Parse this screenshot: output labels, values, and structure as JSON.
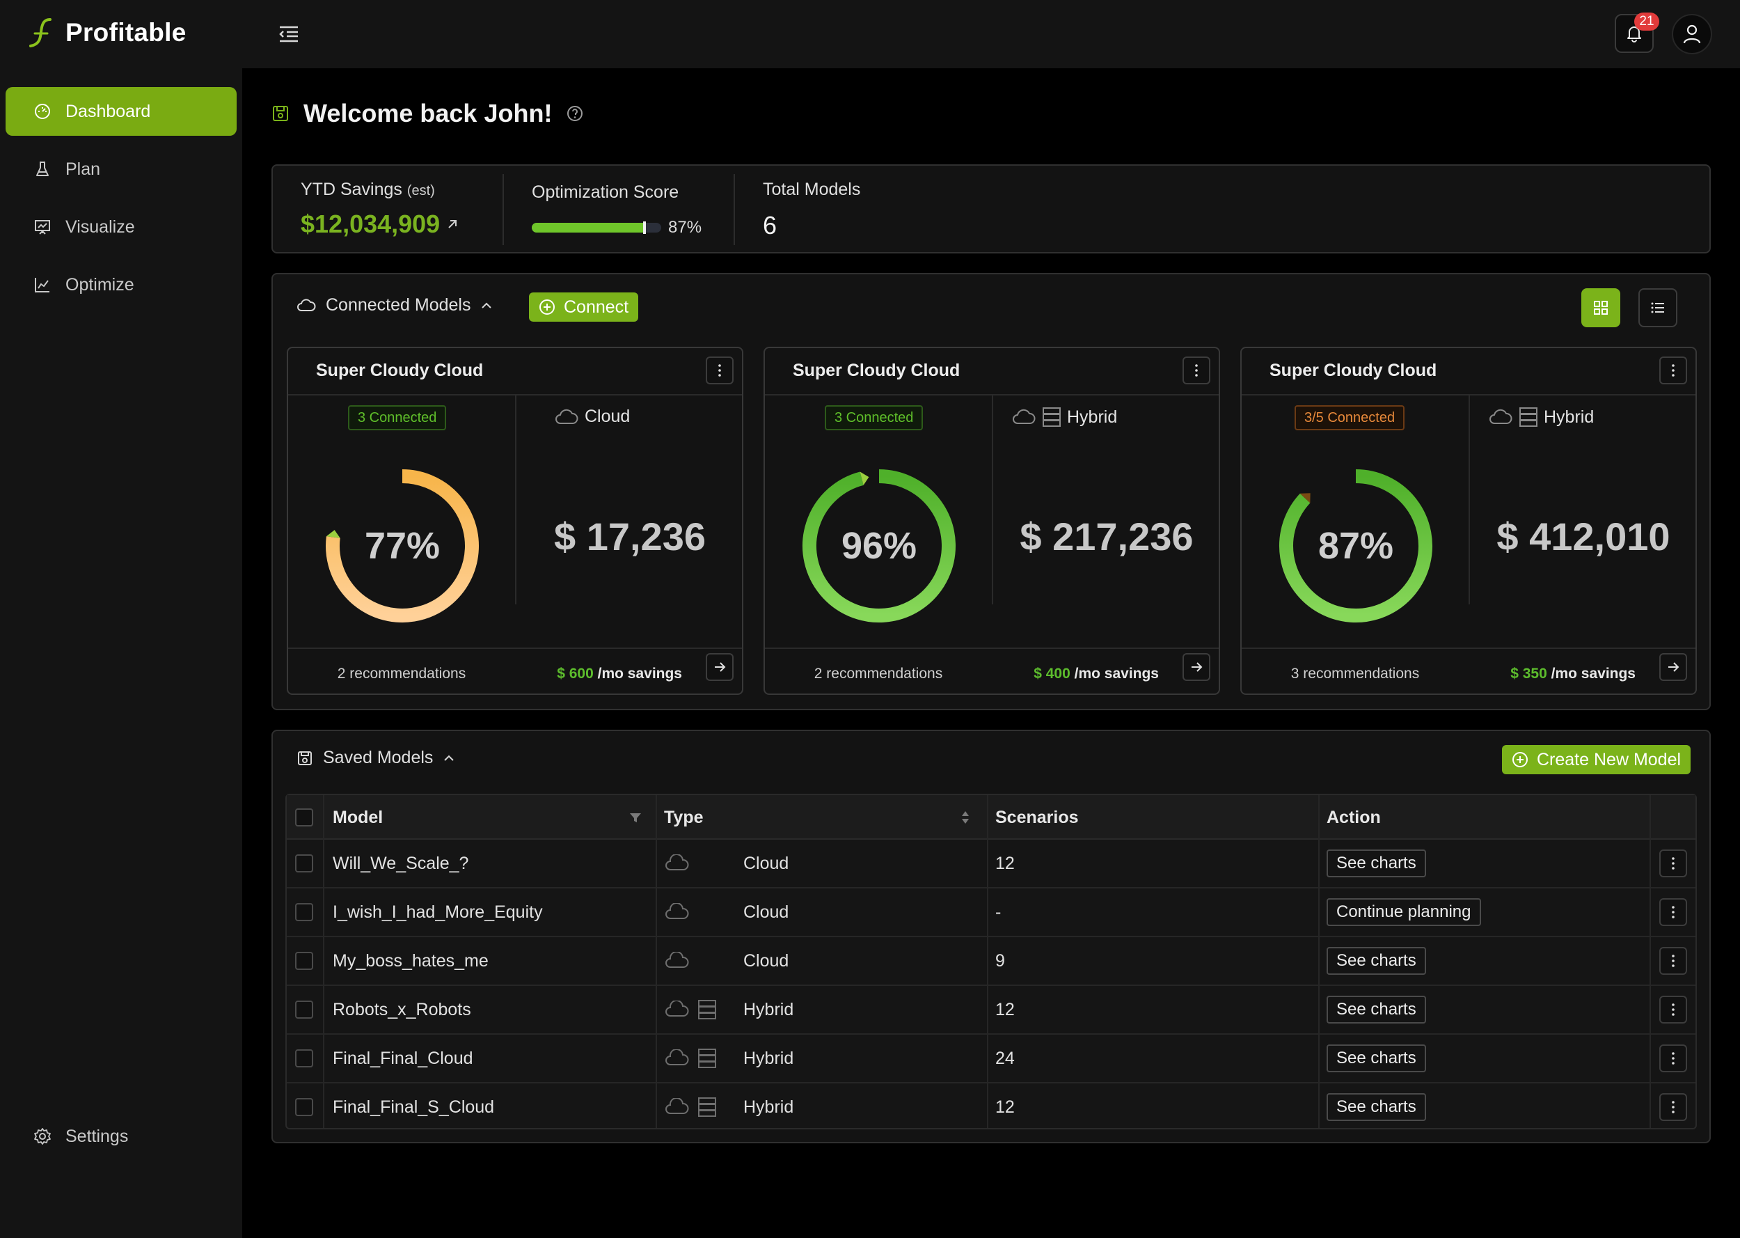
{
  "app": {
    "name": "Profitable"
  },
  "header": {
    "notifications_count": "21"
  },
  "sidebar": {
    "items": [
      {
        "label": "Dashboard",
        "icon": "dashboard-icon",
        "active": true
      },
      {
        "label": "Plan",
        "icon": "flask-icon",
        "active": false
      },
      {
        "label": "Visualize",
        "icon": "presentation-icon",
        "active": false
      },
      {
        "label": "Optimize",
        "icon": "chart-line-icon",
        "active": false
      }
    ],
    "settings_label": "Settings"
  },
  "page": {
    "title": "Welcome back John!"
  },
  "stats": {
    "ytd_label": "YTD Savings",
    "ytd_label_suffix": "(est)",
    "ytd_value": "$12,034,909",
    "score_label": "Optimization Score",
    "score_value": "87%",
    "score_fraction": 0.87,
    "total_label": "Total Models",
    "total_value": "6"
  },
  "connected": {
    "title": "Connected Models",
    "connect_label": "Connect",
    "cards": [
      {
        "title": "Super Cloudy Cloud",
        "status": "3 Connected",
        "status_color": "green",
        "type": "Cloud",
        "percent": "77%",
        "percent_value": 77,
        "amount": "$ 17,236",
        "recommendations": "2 recommendations",
        "savings_amount": "$ 600",
        "savings_suffix": "/mo savings"
      },
      {
        "title": "Super Cloudy Cloud",
        "status": "3 Connected",
        "status_color": "green",
        "type": "Hybrid",
        "percent": "96%",
        "percent_value": 96,
        "amount": "$ 217,236",
        "recommendations": "2 recommendations",
        "savings_amount": "$ 400",
        "savings_suffix": "/mo savings"
      },
      {
        "title": "Super Cloudy Cloud",
        "status": "3/5 Connected",
        "status_color": "orange",
        "type": "Hybrid",
        "percent": "87%",
        "percent_value": 87,
        "amount": "$ 412,010",
        "recommendations": "3 recommendations",
        "savings_amount": "$ 350",
        "savings_suffix": "/mo savings"
      }
    ]
  },
  "saved": {
    "title": "Saved Models",
    "create_label": "Create New Model",
    "columns": [
      "Model",
      "Type",
      "Scenarios",
      "Action"
    ],
    "rows": [
      {
        "model": "Will_We_Scale_?",
        "type": "Cloud",
        "scenarios": "12",
        "action": "See charts"
      },
      {
        "model": "I_wish_I_had_More_Equity",
        "type": "Cloud",
        "scenarios": "-",
        "action": "Continue planning"
      },
      {
        "model": "My_boss_hates_me",
        "type": "Cloud",
        "scenarios": "9",
        "action": "See charts"
      },
      {
        "model": "Robots_x_Robots",
        "type": "Hybrid",
        "scenarios": "12",
        "action": "See charts"
      },
      {
        "model": "Final_Final_Cloud",
        "type": "Hybrid",
        "scenarios": "24",
        "action": "See charts"
      },
      {
        "model": "Final_Final_S_Cloud",
        "type": "Hybrid",
        "scenarios": "12",
        "action": "See charts"
      }
    ]
  },
  "colors": {
    "accent": "#7aab12",
    "positive": "#5dbd2d",
    "warning": "#e8893a",
    "gauge_orange": "#f5b24f",
    "gauge_green": "#52b52a",
    "badge": "#e23b3b"
  }
}
